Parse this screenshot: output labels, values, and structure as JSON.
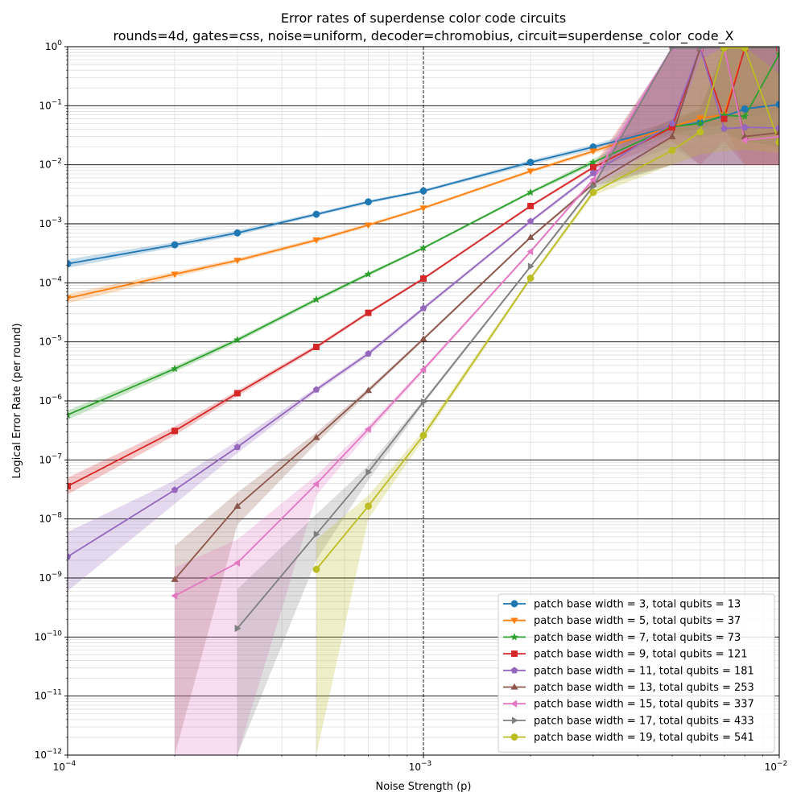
{
  "chart_data": {
    "type": "line",
    "title": "Error rates of superdense color code circuits",
    "subtitle": "rounds=4d, gates=css, noise=uniform, decoder=chromobius, circuit=superdense_color_code_X",
    "xlabel": "Noise Strength (p)",
    "ylabel": "Logical Error Rate (per round)",
    "x_scale": "log",
    "y_scale": "log",
    "xlim": [
      0.0001,
      0.01
    ],
    "ylim": [
      1e-12,
      1
    ],
    "x_major_ticks": [
      {
        "value": 0.0001,
        "base": "10",
        "exp": "−4"
      },
      {
        "value": 0.001,
        "base": "10",
        "exp": "−3"
      },
      {
        "value": 0.01,
        "base": "10",
        "exp": "−2"
      }
    ],
    "y_major_ticks": [
      {
        "value": 1e-12,
        "base": "10",
        "exp": "−12"
      },
      {
        "value": 1e-11,
        "base": "10",
        "exp": "−11"
      },
      {
        "value": 1e-10,
        "base": "10",
        "exp": "−10"
      },
      {
        "value": 1e-09,
        "base": "10",
        "exp": "−9"
      },
      {
        "value": 1e-08,
        "base": "10",
        "exp": "−8"
      },
      {
        "value": 1e-07,
        "base": "10",
        "exp": "−7"
      },
      {
        "value": 1e-06,
        "base": "10",
        "exp": "−6"
      },
      {
        "value": 1e-05,
        "base": "10",
        "exp": "−5"
      },
      {
        "value": 0.0001,
        "base": "10",
        "exp": "−4"
      },
      {
        "value": 0.001,
        "base": "10",
        "exp": "−3"
      },
      {
        "value": 0.01,
        "base": "10",
        "exp": "−2"
      },
      {
        "value": 0.1,
        "base": "10",
        "exp": "−1"
      },
      {
        "value": 1,
        "base": "10",
        "exp": "0"
      }
    ],
    "grid": true,
    "legend_position": "lower-right",
    "series": [
      {
        "name": "patch base width = 3, total qubits = 13",
        "color": "#1f77b4",
        "marker": "circle",
        "points": [
          [
            0.0001,
            0.00021
          ],
          [
            0.0002,
            0.00044
          ],
          [
            0.0003,
            0.0007
          ],
          [
            0.0005,
            0.00145
          ],
          [
            0.0007,
            0.00235
          ],
          [
            0.001,
            0.0036
          ],
          [
            0.002,
            0.011
          ],
          [
            0.003,
            0.02
          ],
          [
            0.005,
            0.044
          ],
          [
            0.006,
            0.052
          ],
          [
            0.007,
            0.066
          ],
          [
            0.008,
            0.088
          ],
          [
            0.01,
            0.105
          ]
        ],
        "band_lower": [
          0.00018,
          0.0004,
          0.00064,
          0.00135,
          0.0022,
          0.0034,
          0.01,
          0.018,
          0.035,
          0.04,
          0.05,
          0.065,
          0.08
        ],
        "band_upper": [
          0.00025,
          0.00049,
          0.00077,
          0.00155,
          0.0025,
          0.0038,
          0.012,
          0.022,
          0.055,
          0.065,
          0.085,
          0.11,
          0.13
        ]
      },
      {
        "name": "patch base width = 5, total qubits = 37",
        "color": "#ff7f0e",
        "marker": "triangle-down",
        "points": [
          [
            0.0001,
            5.5e-05
          ],
          [
            0.0002,
            0.00014
          ],
          [
            0.0003,
            0.00024
          ],
          [
            0.0005,
            0.00053
          ],
          [
            0.0007,
            0.00095
          ],
          [
            0.001,
            0.00185
          ],
          [
            0.002,
            0.0078
          ],
          [
            0.003,
            0.017
          ],
          [
            0.005,
            0.044
          ],
          [
            0.006,
            0.062
          ],
          [
            0.007,
            0.07
          ],
          [
            0.008,
            0.95
          ],
          [
            0.01,
            0.95
          ]
        ],
        "band_lower": [
          4.5e-05,
          0.000125,
          0.00022,
          0.00049,
          0.00089,
          0.00175,
          0.0073,
          0.0155,
          0.033,
          0.045,
          0.045,
          0.01,
          0.01
        ],
        "band_upper": [
          6.5e-05,
          0.000155,
          0.00026,
          0.00057,
          0.00102,
          0.00195,
          0.0083,
          0.0185,
          0.058,
          0.085,
          1.0,
          1.0,
          1.0
        ]
      },
      {
        "name": "patch base width = 7, total qubits = 73",
        "color": "#2ca02c",
        "marker": "star",
        "points": [
          [
            0.0001,
            5.8e-07
          ],
          [
            0.0002,
            3.5e-06
          ],
          [
            0.0003,
            1.08e-05
          ],
          [
            0.0005,
            5.2e-05
          ],
          [
            0.0007,
            0.00014
          ],
          [
            0.001,
            0.00039
          ],
          [
            0.002,
            0.0034
          ],
          [
            0.003,
            0.011
          ],
          [
            0.005,
            0.044
          ],
          [
            0.006,
            0.05
          ],
          [
            0.007,
            0.069
          ],
          [
            0.008,
            0.066
          ],
          [
            0.01,
            0.75
          ]
        ],
        "band_lower": [
          4.8e-07,
          3.1e-06,
          9.8e-06,
          4.8e-05,
          0.00013,
          0.00037,
          0.0032,
          0.01,
          0.032,
          0.03,
          0.035,
          0.025,
          0.02
        ],
        "band_upper": [
          6.9e-07,
          3.9e-06,
          1.18e-05,
          5.6e-05,
          0.00015,
          0.00041,
          0.0036,
          0.0125,
          0.06,
          0.09,
          1.0,
          1.0,
          1.0
        ]
      },
      {
        "name": "patch base width = 9, total qubits = 121",
        "color": "#d62728",
        "marker": "square",
        "points": [
          [
            0.0001,
            3.6e-08
          ],
          [
            0.0002,
            3.1e-07
          ],
          [
            0.0003,
            1.35e-06
          ],
          [
            0.0005,
            8.2e-06
          ],
          [
            0.0007,
            3.1e-05
          ],
          [
            0.001,
            0.000118
          ],
          [
            0.002,
            0.002
          ],
          [
            0.003,
            0.009
          ],
          [
            0.005,
            0.043
          ],
          [
            0.006,
            0.95
          ],
          [
            0.007,
            0.06
          ],
          [
            0.008,
            0.95
          ],
          [
            0.01,
            0.95
          ]
        ],
        "band_lower": [
          2.6e-08,
          2.6e-07,
          1.2e-06,
          7.6e-06,
          2.9e-05,
          0.000112,
          0.0019,
          0.0084,
          0.025,
          0.01,
          0.025,
          0.01,
          0.01
        ],
        "band_upper": [
          5e-08,
          3.7e-07,
          1.5e-06,
          8.9e-06,
          3.3e-05,
          0.000125,
          0.0021,
          0.0096,
          0.9,
          1.0,
          1.0,
          1.0,
          1.0
        ]
      },
      {
        "name": "patch base width = 11, total qubits = 181",
        "color": "#9467bd",
        "marker": "pentagon",
        "points": [
          [
            0.0001,
            2.3e-09
          ],
          [
            0.0002,
            3.1e-08
          ],
          [
            0.0003,
            1.65e-07
          ],
          [
            0.0005,
            1.55e-06
          ],
          [
            0.0007,
            6.3e-06
          ],
          [
            0.001,
            3.7e-05
          ],
          [
            0.002,
            0.0011
          ],
          [
            0.003,
            0.0072
          ],
          [
            0.005,
            0.05
          ],
          [
            0.006,
            0.95
          ],
          [
            0.007,
            0.041
          ],
          [
            0.008,
            0.043
          ],
          [
            0.01,
            0.042
          ]
        ],
        "band_lower": [
          6e-10,
          1.8e-08,
          1.3e-07,
          1.4e-06,
          5.7e-06,
          3.4e-05,
          0.00103,
          0.0066,
          0.02,
          0.01,
          0.01,
          0.01,
          0.01
        ],
        "band_upper": [
          6e-09,
          4.5e-08,
          2.1e-07,
          1.7e-06,
          6.9e-06,
          4e-05,
          0.00117,
          0.0078,
          1.0,
          1.0,
          1.0,
          1.0,
          1.0
        ]
      },
      {
        "name": "patch base width = 13, total qubits = 253",
        "color": "#8c564b",
        "marker": "triangle-up",
        "points": [
          [
            0.0002,
            9.5e-10
          ],
          [
            0.0003,
            1.65e-08
          ],
          [
            0.0005,
            2.4e-07
          ],
          [
            0.0007,
            1.5e-06
          ],
          [
            0.001,
            1.12e-05
          ],
          [
            0.002,
            0.00059
          ],
          [
            0.003,
            0.0047
          ],
          [
            0.005,
            0.03
          ],
          [
            0.006,
            0.95
          ],
          [
            0.007,
            0.95
          ],
          [
            0.008,
            0.03
          ],
          [
            0.01,
            0.035
          ]
        ],
        "band_lower": [
          1e-12,
          8e-09,
          1.9e-07,
          1.35e-06,
          1.05e-05,
          0.00056,
          0.0043,
          0.01,
          0.01,
          0.01,
          0.01,
          0.01
        ],
        "band_upper": [
          3.5e-09,
          2.8e-08,
          2.9e-07,
          1.65e-06,
          1.2e-05,
          0.00062,
          0.0051,
          1.0,
          1.0,
          1.0,
          1.0,
          1.0
        ]
      },
      {
        "name": "patch base width = 15, total qubits = 337",
        "color": "#e377c2",
        "marker": "triangle-left",
        "points": [
          [
            0.0002,
            5e-10
          ],
          [
            0.0003,
            1.8e-09
          ],
          [
            0.0005,
            3.9e-08
          ],
          [
            0.0007,
            3.3e-07
          ],
          [
            0.001,
            3.4e-06
          ],
          [
            0.002,
            0.00034
          ],
          [
            0.003,
            0.0056
          ],
          [
            0.005,
            0.95
          ],
          [
            0.006,
            0.95
          ],
          [
            0.007,
            0.95
          ],
          [
            0.008,
            0.026
          ],
          [
            0.01,
            0.03
          ]
        ],
        "band_lower": [
          1e-12,
          1e-12,
          2.5e-08,
          2.8e-07,
          3.1e-06,
          0.00032,
          0.0051,
          0.01,
          0.01,
          0.01,
          0.01,
          0.01
        ],
        "band_upper": [
          1.5e-09,
          4.5e-09,
          5.5e-08,
          3.8e-07,
          3.7e-06,
          0.00036,
          0.0061,
          1.0,
          1.0,
          1.0,
          1.0,
          1.0
        ]
      },
      {
        "name": "patch base width = 17, total qubits = 433",
        "color": "#7f7f7f",
        "marker": "triangle-right",
        "points": [
          [
            0.0003,
            1.4e-10
          ],
          [
            0.0005,
            5.5e-09
          ],
          [
            0.0007,
            6.2e-08
          ],
          [
            0.001,
            9.6e-07
          ],
          [
            0.002,
            0.00019
          ],
          [
            0.003,
            0.0043
          ],
          [
            0.005,
            0.95
          ],
          [
            0.006,
            0.95
          ],
          [
            0.007,
            0.95
          ],
          [
            0.008,
            0.95
          ],
          [
            0.01,
            0.95
          ]
        ],
        "band_lower": [
          1e-12,
          2e-09,
          4.5e-08,
          8.7e-07,
          0.00018,
          0.0039,
          0.01,
          0.01,
          0.01,
          0.01,
          0.01
        ],
        "band_upper": [
          6.5e-10,
          1.2e-08,
          8e-08,
          1.05e-06,
          0.0002,
          0.0047,
          1.0,
          1.0,
          1.0,
          1.0,
          1.0
        ]
      },
      {
        "name": "patch base width = 19, total qubits = 541",
        "color": "#bcbd22",
        "marker": "circle",
        "points": [
          [
            0.0005,
            1.4e-09
          ],
          [
            0.0007,
            1.65e-08
          ],
          [
            0.001,
            2.6e-07
          ],
          [
            0.002,
            0.00012
          ],
          [
            0.003,
            0.0034
          ],
          [
            0.005,
            0.0175
          ],
          [
            0.006,
            0.036
          ],
          [
            0.007,
            0.95
          ],
          [
            0.008,
            0.95
          ],
          [
            0.01,
            0.024
          ]
        ],
        "band_lower": [
          1e-12,
          1e-08,
          2.2e-07,
          0.00011,
          0.003,
          0.01,
          0.015,
          0.017,
          0.018,
          0.016
        ],
        "band_upper": [
          4.5e-09,
          2.5e-08,
          3.1e-07,
          0.00013,
          0.0038,
          0.03,
          0.6,
          1.0,
          1.0,
          0.35
        ]
      }
    ]
  }
}
